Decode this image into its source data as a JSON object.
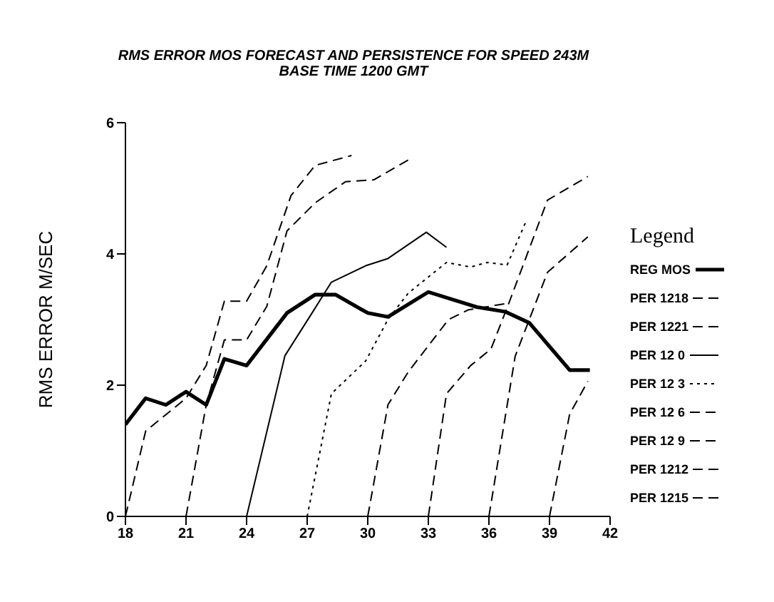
{
  "chart_data": {
    "type": "line",
    "title": "RMS ERROR MOS FORECAST AND PERSISTENCE FOR SPEED 243M",
    "subtitle": "BASE TIME 1200 GMT",
    "ylabel": "RMS ERROR M/SEC",
    "legend_title": "Legend",
    "legend": "right",
    "marker": "none",
    "xlim": [
      18,
      42
    ],
    "xticks": [
      18,
      21,
      24,
      27,
      30,
      33,
      36,
      39,
      42
    ],
    "ylim": [
      0,
      6
    ],
    "yticks": [
      0,
      2,
      4,
      6
    ],
    "series": [
      {
        "name": "REG MOS",
        "color": "#000000",
        "line_style": "solid",
        "x": [
          18,
          19,
          20,
          21,
          22,
          22.9,
          24,
          25,
          26,
          27.4,
          28.4,
          30,
          31,
          33,
          35.4,
          36.8,
          38,
          40,
          41
        ],
        "values": [
          1.4,
          1.8,
          1.7,
          1.9,
          1.7,
          2.4,
          2.3,
          2.7,
          3.1,
          3.38,
          3.38,
          3.1,
          3.04,
          3.42,
          3.19,
          3.12,
          2.95,
          2.23,
          2.23
        ]
      },
      {
        "name": "PER 1218",
        "color": "#000000",
        "line_style": "dashed",
        "x": [
          18,
          19,
          21,
          22,
          22.9,
          24,
          25,
          26.2,
          27.4,
          29.2
        ],
        "values": [
          0,
          1.3,
          1.8,
          2.3,
          3.28,
          3.28,
          3.82,
          4.89,
          5.35,
          5.5
        ]
      },
      {
        "name": "PER 1221",
        "color": "#000000",
        "line_style": "dashed",
        "x": [
          21,
          22,
          22.9,
          24,
          25,
          26,
          27.4,
          28.9,
          30.3,
          32
        ],
        "values": [
          0,
          1.7,
          2.69,
          2.69,
          3.2,
          4.35,
          4.78,
          5.1,
          5.13,
          5.43
        ]
      },
      {
        "name": "PER 12 0",
        "color": "#000000",
        "line_style": "solid",
        "x": [
          24,
          25.9,
          27.2,
          28.2,
          29.9,
          31,
          32.9,
          33.9
        ],
        "values": [
          0,
          2.45,
          3.08,
          3.57,
          3.82,
          3.93,
          4.33,
          4.1
        ]
      },
      {
        "name": "PER 12 3",
        "color": "#000000",
        "line_style": "dotted",
        "x": [
          27,
          28.2,
          29.9,
          31,
          32,
          33.9,
          35.1,
          35.9,
          36.9,
          37.8
        ],
        "values": [
          0,
          1.87,
          2.37,
          3.0,
          3.4,
          3.87,
          3.8,
          3.87,
          3.83,
          4.47
        ]
      },
      {
        "name": "PER 12 6",
        "color": "#000000",
        "line_style": "dashed",
        "x": [
          30,
          31,
          32,
          33,
          34,
          35,
          36,
          37
        ],
        "values": [
          0,
          1.7,
          2.2,
          2.6,
          3.0,
          3.15,
          3.2,
          3.25
        ]
      },
      {
        "name": "PER 12 9",
        "color": "#000000",
        "line_style": "dashed",
        "x": [
          33,
          33.9,
          35.1,
          36.1,
          37,
          38.9,
          40.9
        ],
        "values": [
          0,
          1.87,
          2.3,
          2.55,
          3.26,
          4.82,
          5.18
        ]
      },
      {
        "name": "PER 1212",
        "color": "#000000",
        "line_style": "dashed",
        "x": [
          36,
          37.3,
          38,
          38.9,
          40.9
        ],
        "values": [
          0,
          2.44,
          3.0,
          3.72,
          4.26
        ]
      },
      {
        "name": "PER 1215",
        "color": "#000000",
        "line_style": "dashed",
        "x": [
          39,
          40,
          40.9
        ],
        "values": [
          0,
          1.56,
          2.06
        ]
      }
    ]
  }
}
